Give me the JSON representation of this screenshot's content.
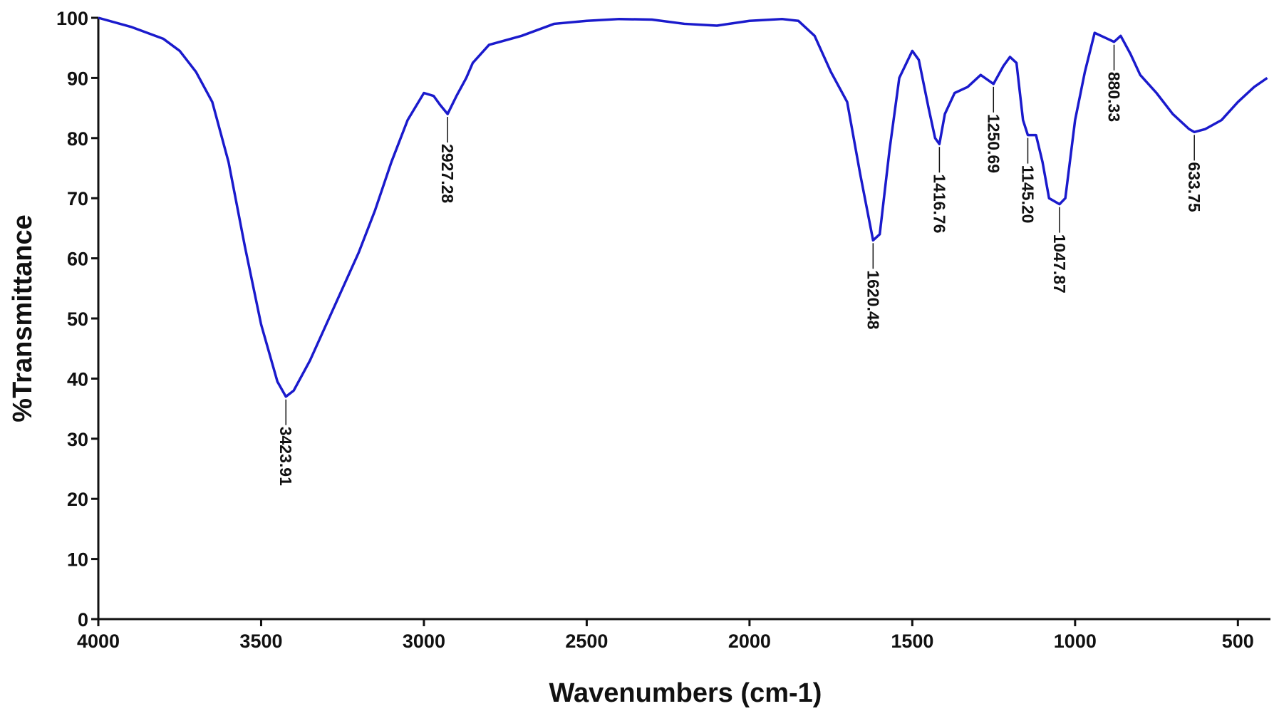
{
  "chart_data": {
    "type": "line",
    "xlabel": "Wavenumbers (cm-1)",
    "ylabel": "%Transmittance",
    "xlim": [
      4000,
      400
    ],
    "ylim": [
      0,
      100
    ],
    "xticks": [
      4000,
      3500,
      3000,
      2500,
      2000,
      1500,
      1000,
      500
    ],
    "yticks": [
      0,
      10,
      20,
      30,
      40,
      50,
      60,
      70,
      80,
      90,
      100
    ],
    "series": [
      {
        "color": "#1a1acc",
        "x": [
          4000,
          3900,
          3800,
          3750,
          3700,
          3650,
          3600,
          3550,
          3500,
          3450,
          3423.91,
          3400,
          3350,
          3300,
          3250,
          3200,
          3150,
          3100,
          3050,
          3000,
          2970,
          2950,
          2927.28,
          2900,
          2870,
          2850,
          2800,
          2700,
          2600,
          2500,
          2400,
          2300,
          2200,
          2100,
          2000,
          1900,
          1850,
          1800,
          1750,
          1700,
          1660,
          1620.48,
          1600,
          1570,
          1540,
          1500,
          1480,
          1450,
          1430,
          1416.76,
          1400,
          1370,
          1330,
          1290,
          1250.69,
          1220,
          1200,
          1180,
          1160,
          1145.2,
          1120,
          1100,
          1080,
          1047.87,
          1030,
          1000,
          970,
          940,
          900,
          880.33,
          860,
          830,
          800,
          750,
          700,
          650,
          633.75,
          600,
          550,
          500,
          450,
          410
        ],
        "values": [
          100,
          98.5,
          96.5,
          94.5,
          91,
          86,
          76,
          62,
          49,
          39.5,
          37,
          38,
          43,
          49,
          55,
          61,
          68,
          76,
          83,
          87.5,
          87,
          85.5,
          84,
          87,
          90,
          92.5,
          95.5,
          97,
          99,
          99.5,
          99.8,
          99.7,
          99,
          98.7,
          99.5,
          99.8,
          99.5,
          97,
          91,
          86,
          74,
          63,
          64,
          78,
          90,
          94.5,
          93,
          85,
          80,
          79,
          84,
          87.5,
          88.5,
          90.5,
          89,
          92,
          93.5,
          92.5,
          83,
          80.5,
          80.5,
          76,
          70,
          69,
          70,
          83,
          91,
          97.5,
          96.5,
          96,
          97,
          94,
          90.5,
          87.5,
          84,
          81.5,
          81,
          81.5,
          83,
          86,
          88.5,
          90
        ]
      }
    ],
    "annotations": [
      {
        "label": "3423.91",
        "x": 3423.91,
        "y": 37
      },
      {
        "label": "2927.28",
        "x": 2927.28,
        "y": 84
      },
      {
        "label": "1620.48",
        "x": 1620.48,
        "y": 63
      },
      {
        "label": "1416.76",
        "x": 1416.76,
        "y": 79
      },
      {
        "label": "1250.69",
        "x": 1250.69,
        "y": 89
      },
      {
        "label": "1145.20",
        "x": 1145.2,
        "y": 80.5
      },
      {
        "label": "1047.87",
        "x": 1047.87,
        "y": 69
      },
      {
        "label": "880.33",
        "x": 880.33,
        "y": 96
      },
      {
        "label": "633.75",
        "x": 633.75,
        "y": 81
      }
    ]
  }
}
